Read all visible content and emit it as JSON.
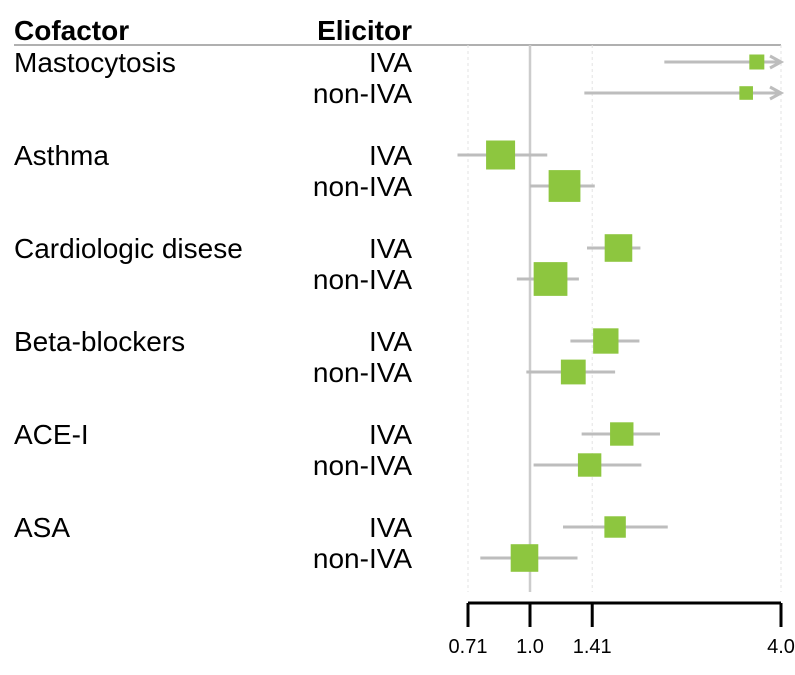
{
  "chart_data": {
    "type": "forest",
    "headers": {
      "cofactor": "Cofactor",
      "elicitor": "Elicitor"
    },
    "x_scale": "log",
    "xlim": [
      0.71,
      4.0
    ],
    "reference_line": 1.0,
    "x_ticks": [
      {
        "value": 0.71,
        "label": "0.71"
      },
      {
        "value": 1.0,
        "label": "1.0"
      },
      {
        "value": 1.41,
        "label": "1.41"
      },
      {
        "value": 4.0,
        "label": "4.0"
      }
    ],
    "marker_color": "#8dc63f",
    "ci_color": "#bdbdbd",
    "groups": [
      {
        "cofactor": "Mastocytosis",
        "rows": [
          {
            "elicitor": "IVA",
            "estimate": 3.5,
            "lower": 2.1,
            "upper": 4.0,
            "upper_truncated": true,
            "weight": 0.25
          },
          {
            "elicitor": "non-IVA",
            "estimate": 3.3,
            "lower": 1.35,
            "upper": 4.0,
            "upper_truncated": true,
            "weight": 0.2
          }
        ]
      },
      {
        "cofactor": "Asthma",
        "rows": [
          {
            "elicitor": "IVA",
            "estimate": 0.85,
            "lower": 0.67,
            "upper": 1.1,
            "weight": 0.75
          },
          {
            "elicitor": "non-IVA",
            "estimate": 1.21,
            "lower": 1.0,
            "upper": 1.43,
            "weight": 0.85
          }
        ]
      },
      {
        "cofactor": "Cardiologic disese",
        "rows": [
          {
            "elicitor": "IVA",
            "estimate": 1.63,
            "lower": 1.37,
            "upper": 1.84,
            "weight": 0.7
          },
          {
            "elicitor": "non-IVA",
            "estimate": 1.12,
            "lower": 0.93,
            "upper": 1.31,
            "weight": 0.92
          }
        ]
      },
      {
        "cofactor": "Beta-blockers",
        "rows": [
          {
            "elicitor": "IVA",
            "estimate": 1.52,
            "lower": 1.25,
            "upper": 1.83,
            "weight": 0.62
          },
          {
            "elicitor": "non-IVA",
            "estimate": 1.27,
            "lower": 0.98,
            "upper": 1.6,
            "weight": 0.6
          }
        ]
      },
      {
        "cofactor": "ACE-I",
        "rows": [
          {
            "elicitor": "IVA",
            "estimate": 1.66,
            "lower": 1.33,
            "upper": 2.05,
            "weight": 0.55
          },
          {
            "elicitor": "non-IVA",
            "estimate": 1.39,
            "lower": 1.02,
            "upper": 1.85,
            "weight": 0.55
          }
        ]
      },
      {
        "cofactor": "ASA",
        "rows": [
          {
            "elicitor": "IVA",
            "estimate": 1.6,
            "lower": 1.2,
            "upper": 2.14,
            "weight": 0.48
          },
          {
            "elicitor": "non-IVA",
            "estimate": 0.97,
            "lower": 0.76,
            "upper": 1.3,
            "weight": 0.7
          }
        ]
      }
    ]
  }
}
